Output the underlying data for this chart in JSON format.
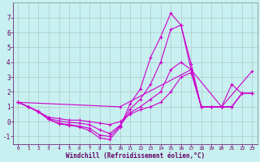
{
  "background_color": "#c8f0f0",
  "grid_color": "#b0c8c8",
  "line_color": "#cc00cc",
  "xlabel": "Windchill (Refroidissement éolien,°C)",
  "xlim": [
    -0.5,
    23.5
  ],
  "ylim": [
    -1.5,
    8.0
  ],
  "xticks": [
    0,
    1,
    2,
    3,
    4,
    5,
    6,
    7,
    8,
    9,
    10,
    11,
    12,
    13,
    14,
    15,
    16,
    17,
    18,
    19,
    20,
    21,
    22,
    23
  ],
  "yticks": [
    -1,
    0,
    1,
    2,
    3,
    4,
    5,
    6,
    7
  ],
  "lines": [
    {
      "x": [
        0,
        1,
        2,
        3,
        4,
        5,
        6,
        7,
        8,
        9,
        10,
        11,
        12,
        13,
        14,
        15,
        16,
        17,
        18,
        19,
        20,
        21,
        22,
        23
      ],
      "y": [
        1.3,
        1.0,
        0.7,
        0.15,
        -0.15,
        -0.25,
        -0.35,
        -0.6,
        -1.1,
        -1.2,
        -0.4,
        1.2,
        2.2,
        4.3,
        5.7,
        7.3,
        6.5,
        3.9,
        1.0,
        1.0,
        1.0,
        1.0,
        1.9,
        1.9
      ]
    },
    {
      "x": [
        0,
        1,
        2,
        3,
        4,
        5,
        6,
        7,
        8,
        9,
        10,
        11,
        12,
        13,
        14,
        15,
        16,
        17,
        18,
        19,
        20,
        21,
        22,
        23
      ],
      "y": [
        1.3,
        1.0,
        0.65,
        0.15,
        -0.1,
        -0.2,
        -0.3,
        -0.45,
        -0.9,
        -1.0,
        -0.3,
        0.85,
        1.5,
        2.5,
        4.0,
        6.2,
        6.5,
        3.5,
        1.0,
        1.0,
        1.0,
        2.5,
        1.9,
        1.9
      ]
    },
    {
      "x": [
        0,
        10,
        17,
        20,
        23
      ],
      "y": [
        1.3,
        1.0,
        3.5,
        1.0,
        3.4
      ]
    },
    {
      "x": [
        0,
        1,
        2,
        3,
        4,
        5,
        6,
        7,
        8,
        9,
        10,
        11,
        12,
        13,
        14,
        15,
        16,
        17,
        18,
        19,
        20,
        21,
        22,
        23
      ],
      "y": [
        1.3,
        1.0,
        0.65,
        0.2,
        0.05,
        -0.05,
        -0.1,
        -0.2,
        -0.55,
        -0.8,
        -0.25,
        0.6,
        1.0,
        1.5,
        2.0,
        3.5,
        4.0,
        3.5,
        1.0,
        1.0,
        1.0,
        1.0,
        1.9,
        1.9
      ]
    },
    {
      "x": [
        0,
        1,
        2,
        3,
        4,
        5,
        6,
        7,
        8,
        9,
        10,
        11,
        12,
        13,
        14,
        15,
        16,
        17,
        18,
        19,
        20,
        21,
        22,
        23
      ],
      "y": [
        1.3,
        1.0,
        0.65,
        0.3,
        0.2,
        0.1,
        0.1,
        0.0,
        -0.1,
        -0.2,
        0.0,
        0.5,
        0.8,
        1.0,
        1.3,
        2.0,
        3.0,
        3.3,
        1.0,
        1.0,
        1.0,
        1.0,
        1.9,
        1.9
      ]
    }
  ]
}
